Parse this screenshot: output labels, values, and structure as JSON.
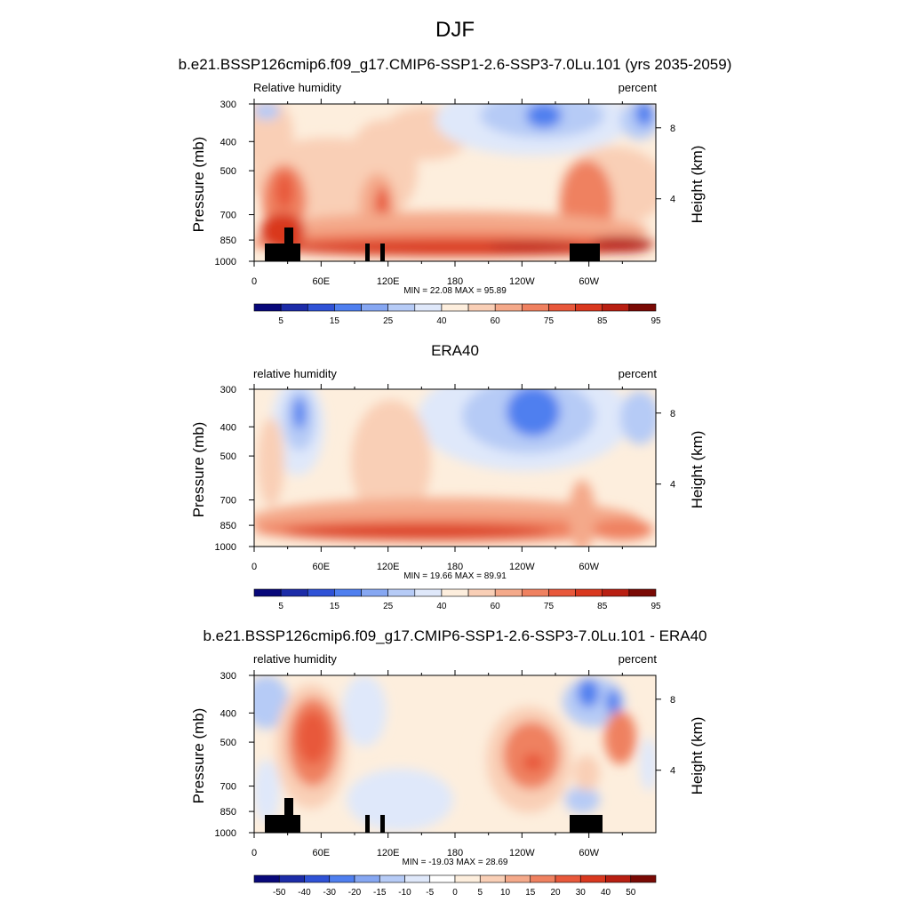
{
  "title": "DJF",
  "panels": [
    {
      "title": "b.e21.BSSP126cmip6.f09_g17.CMIP6-SSP1-2.6-SSP3-7.0Lu.101 (yrs 2035-2059)",
      "left_string": "Relative humidity",
      "right_string": "percent",
      "minmax": "MIN =  22.08  MAX =  95.89"
    },
    {
      "title": "ERA40",
      "left_string": "relative humidity",
      "right_string": "percent",
      "minmax": "MIN =  19.66  MAX =  89.91"
    },
    {
      "title": "b.e21.BSSP126cmip6.f09_g17.CMIP6-SSP1-2.6-SSP3-7.0Lu.101 - ERA40",
      "left_string": "relative humidity",
      "right_string": "percent",
      "minmax": "MIN = -19.03  MAX =  28.69"
    }
  ],
  "chart_data": [
    {
      "type": "heatmap",
      "ylabel": "Pressure (mb)",
      "y2label": "Height (km)",
      "xticks": [
        "0",
        "60E",
        "120E",
        "180",
        "120W",
        "60W"
      ],
      "xtick_values": [
        0,
        60,
        120,
        180,
        240,
        300
      ],
      "xlim": [
        0,
        360
      ],
      "yticks": [
        "300",
        "400",
        "500",
        "700",
        "850",
        "1000"
      ],
      "ytick_values": [
        300,
        400,
        500,
        700,
        850,
        1000
      ],
      "ylim": [
        1000,
        300
      ],
      "y2ticks": [
        "8",
        "4"
      ],
      "y2tick_values": [
        8,
        4
      ],
      "min": 22.08,
      "max": 95.89,
      "colorbar_labels": [
        "5",
        "15",
        "25",
        "40",
        "60",
        "75",
        "85",
        "95"
      ],
      "colorbar_colors": [
        "#08087a",
        "#1c2ca8",
        "#2f52d6",
        "#4f7fef",
        "#86a7f2",
        "#b6cbf6",
        "#dfe8fa",
        "#fdeedd",
        "#f9cfb6",
        "#f4a98a",
        "#ef8160",
        "#e8583b",
        "#d9381f",
        "#b81f12",
        "#7a0a05"
      ]
    },
    {
      "type": "heatmap",
      "ylabel": "Pressure (mb)",
      "y2label": "Height (km)",
      "xticks": [
        "0",
        "60E",
        "120E",
        "180",
        "120W",
        "60W"
      ],
      "xtick_values": [
        0,
        60,
        120,
        180,
        240,
        300
      ],
      "xlim": [
        0,
        360
      ],
      "yticks": [
        "300",
        "400",
        "500",
        "700",
        "850",
        "1000"
      ],
      "ytick_values": [
        300,
        400,
        500,
        700,
        850,
        1000
      ],
      "ylim": [
        1000,
        300
      ],
      "y2ticks": [
        "8",
        "4"
      ],
      "y2tick_values": [
        8,
        4
      ],
      "min": 19.66,
      "max": 89.91,
      "colorbar_labels": [
        "5",
        "15",
        "25",
        "40",
        "60",
        "75",
        "85",
        "95"
      ],
      "colorbar_colors": [
        "#08087a",
        "#1c2ca8",
        "#2f52d6",
        "#4f7fef",
        "#86a7f2",
        "#b6cbf6",
        "#dfe8fa",
        "#fdeedd",
        "#f9cfb6",
        "#f4a98a",
        "#ef8160",
        "#e8583b",
        "#d9381f",
        "#b81f12",
        "#7a0a05"
      ]
    },
    {
      "type": "heatmap",
      "ylabel": "Pressure (mb)",
      "y2label": "Height (km)",
      "xticks": [
        "0",
        "60E",
        "120E",
        "180",
        "120W",
        "60W"
      ],
      "xtick_values": [
        0,
        60,
        120,
        180,
        240,
        300
      ],
      "xlim": [
        0,
        360
      ],
      "yticks": [
        "300",
        "400",
        "500",
        "700",
        "850",
        "1000"
      ],
      "ytick_values": [
        300,
        400,
        500,
        700,
        850,
        1000
      ],
      "ylim": [
        1000,
        300
      ],
      "y2ticks": [
        "8",
        "4"
      ],
      "y2tick_values": [
        8,
        4
      ],
      "min": -19.03,
      "max": 28.69,
      "colorbar_labels": [
        "-50",
        "-40",
        "-30",
        "-20",
        "-15",
        "-10",
        "-5",
        "0",
        "5",
        "10",
        "15",
        "20",
        "30",
        "40",
        "50"
      ],
      "colorbar_colors": [
        "#08087a",
        "#1c2ca8",
        "#2f52d6",
        "#4f7fef",
        "#86a7f2",
        "#b6cbf6",
        "#dfe8fa",
        "#ffffff",
        "#fdeedd",
        "#f9cfb6",
        "#f4a98a",
        "#ef8160",
        "#e8583b",
        "#d9381f",
        "#b81f12",
        "#7a0a05"
      ]
    }
  ]
}
